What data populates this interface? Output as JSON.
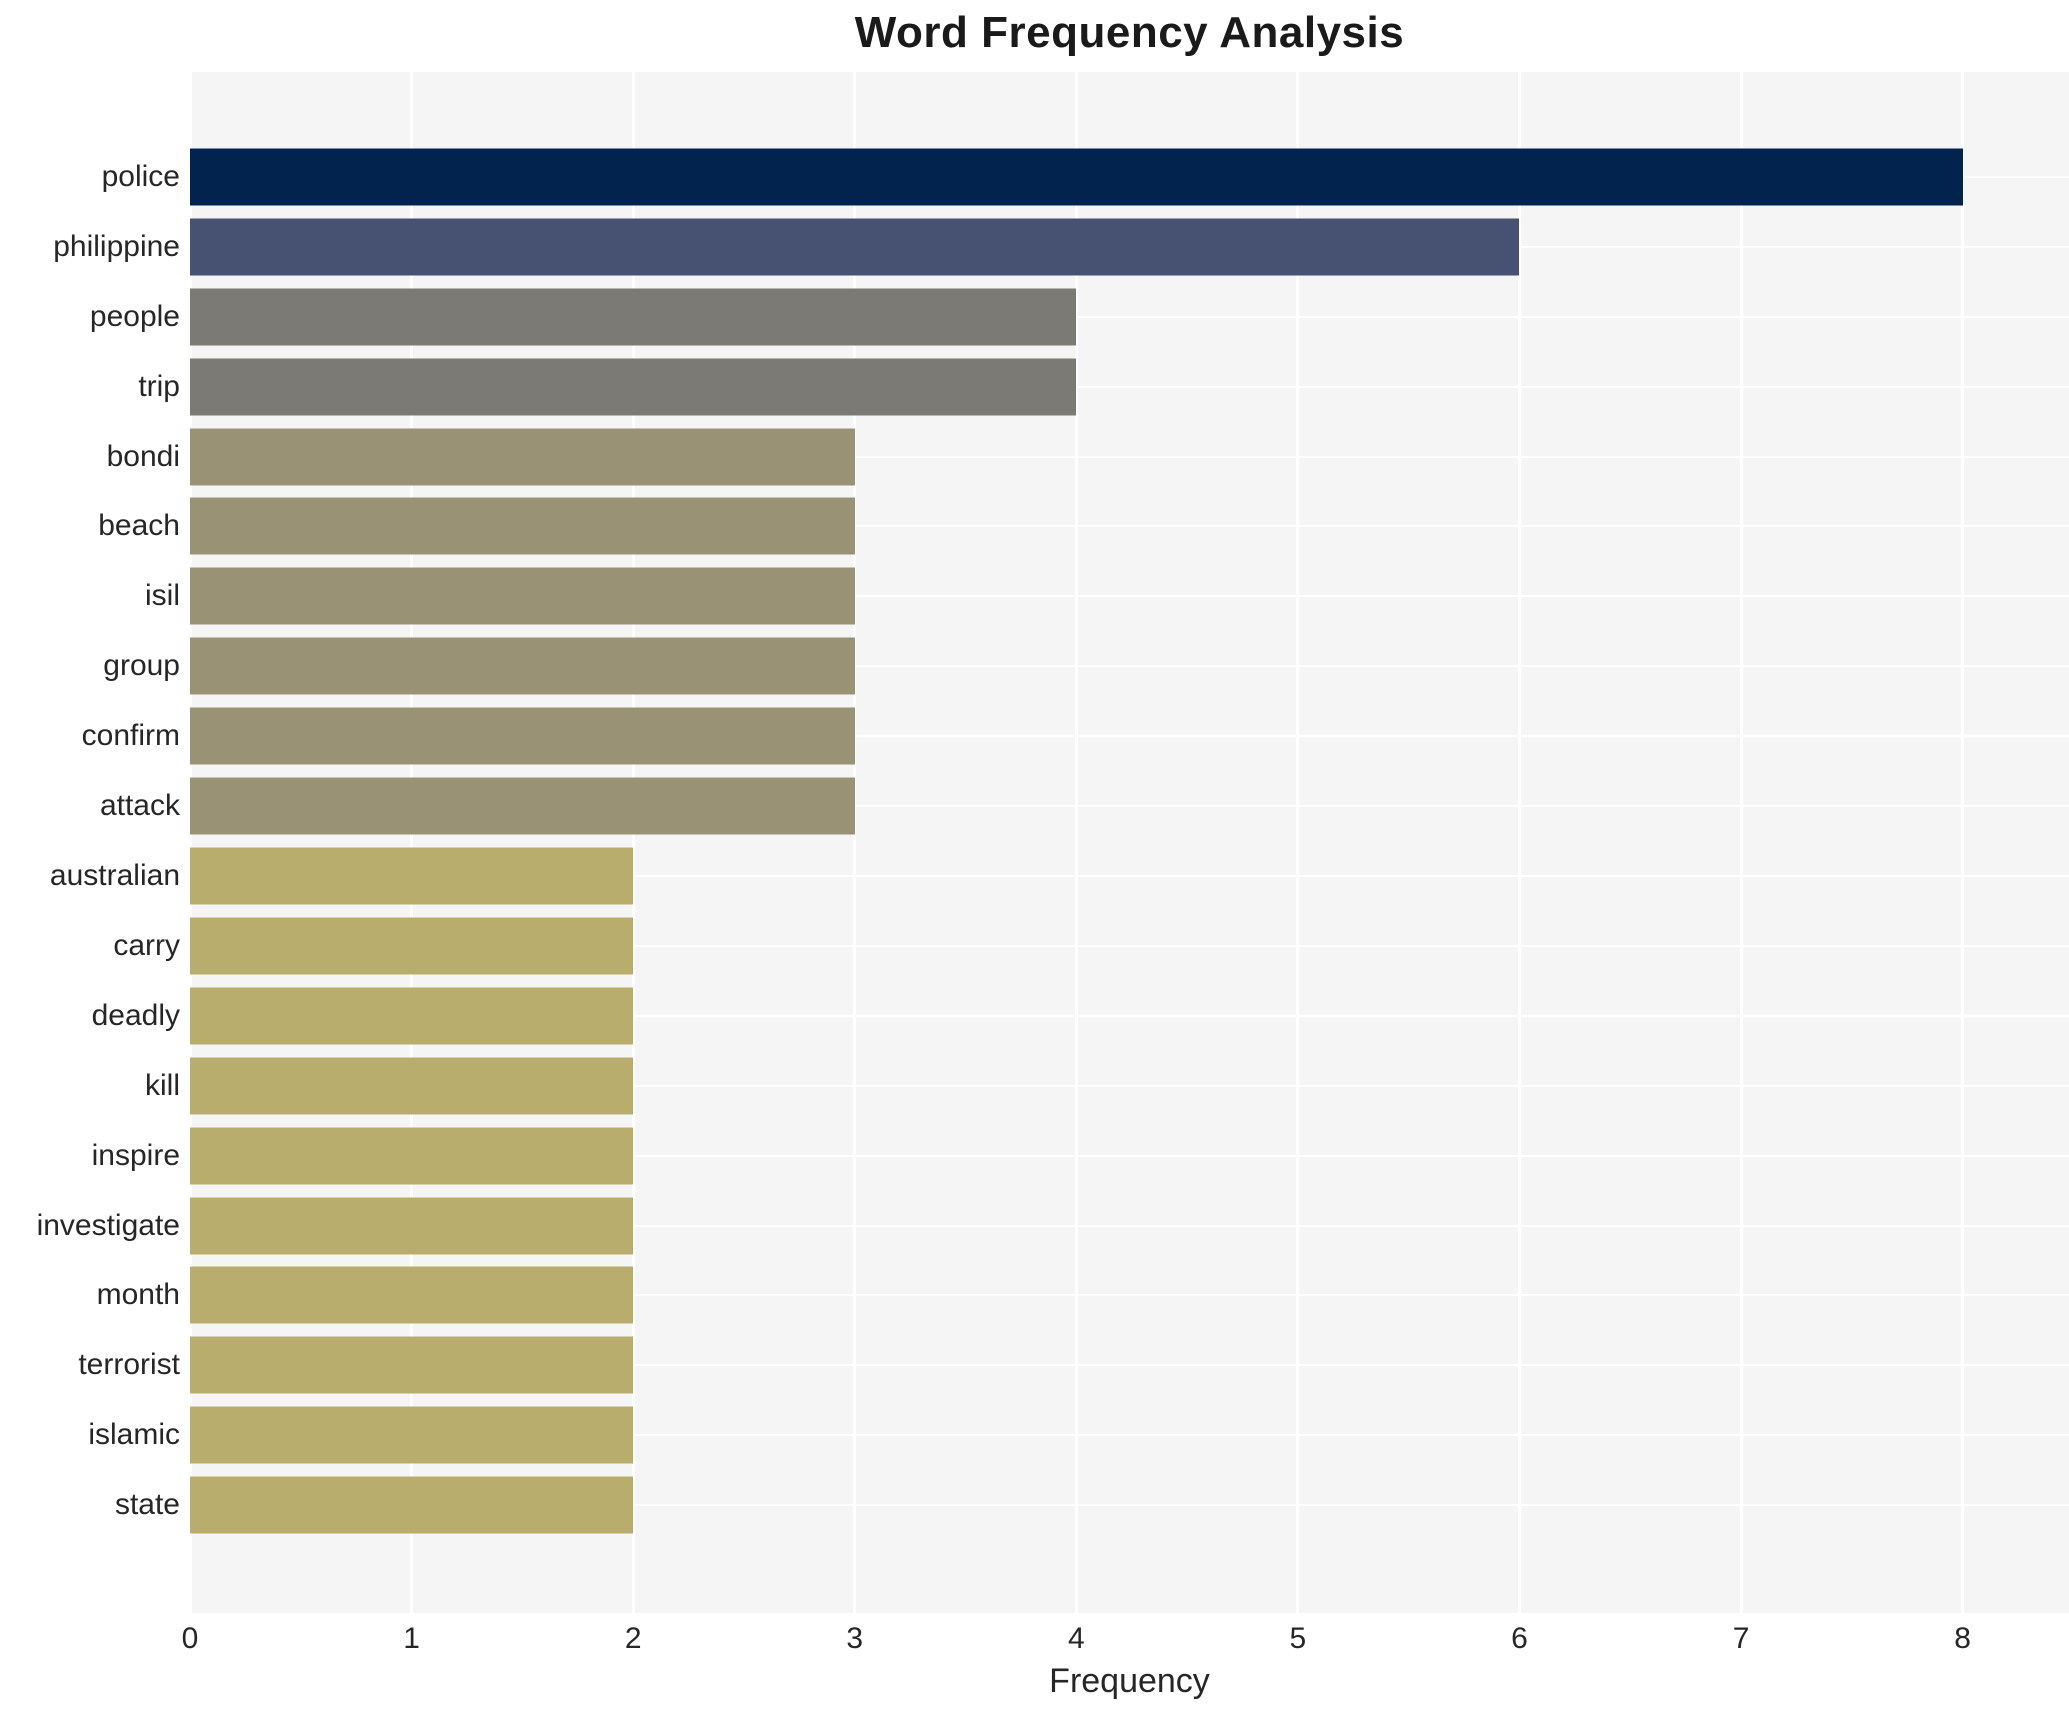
{
  "chart_data": {
    "type": "bar",
    "orientation": "horizontal",
    "title": "Word Frequency Analysis",
    "xlabel": "Frequency",
    "ylabel": "",
    "xlim": [
      0,
      8.48
    ],
    "x_ticks": [
      0,
      1,
      2,
      3,
      4,
      5,
      6,
      7,
      8
    ],
    "grid": true,
    "legend": false,
    "colors": {
      "figure_background": "#ffffff",
      "plot_background": "#f5f5f6",
      "gridline": "#ffffff",
      "title_text": "#1a1a1a",
      "tick_text": "#262626"
    },
    "categories": [
      "police",
      "philippine",
      "people",
      "trip",
      "bondi",
      "beach",
      "isil",
      "group",
      "confirm",
      "attack",
      "australian",
      "carry",
      "deadly",
      "kill",
      "inspire",
      "investigate",
      "month",
      "terrorist",
      "islamic",
      "state"
    ],
    "values": [
      8,
      6,
      4,
      4,
      3,
      3,
      3,
      3,
      3,
      3,
      2,
      2,
      2,
      2,
      2,
      2,
      2,
      2,
      2,
      2
    ],
    "bar_colors": [
      "#02234e",
      "#475172",
      "#7b7a75",
      "#7b7a75",
      "#9a9274",
      "#9a9274",
      "#9a9274",
      "#9a9274",
      "#9a9274",
      "#9a9274",
      "#b9ad6e",
      "#b9ad6e",
      "#b9ad6e",
      "#b9ad6e",
      "#b9ad6e",
      "#b9ad6e",
      "#b9ad6e",
      "#b9ad6e",
      "#b9ad6e",
      "#b9ad6e"
    ]
  }
}
